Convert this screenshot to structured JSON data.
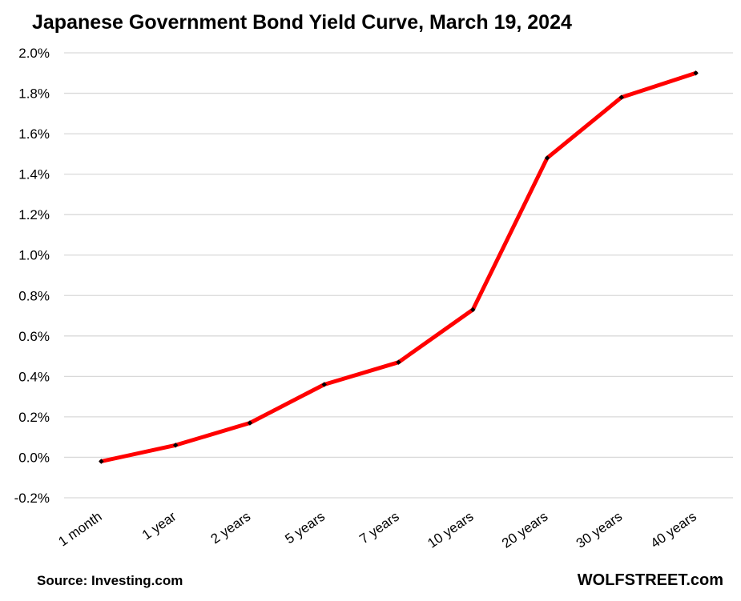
{
  "title": "Japanese Government Bond Yield Curve, March 19, 2024",
  "source": "Source: Investing.com",
  "brand": "WOLFSTREET.com",
  "colors": {
    "line": "#ff0000",
    "marker": "#000000",
    "grid": "#d9d9d9",
    "background": "#ffffff"
  },
  "chart_data": {
    "type": "line",
    "title": "Japanese Government Bond Yield Curve, March 19, 2024",
    "xlabel": "",
    "ylabel": "",
    "categories": [
      "1 month",
      "1 year",
      "2 years",
      "5 years",
      "7 years",
      "10 years",
      "20 years",
      "30 years",
      "40 years"
    ],
    "series": [
      {
        "name": "",
        "values": [
          -0.02,
          0.06,
          0.17,
          0.36,
          0.47,
          0.73,
          1.48,
          1.78,
          1.9
        ]
      }
    ],
    "ylim": [
      -0.2,
      2.0
    ],
    "yticks": [
      -0.2,
      0.0,
      0.2,
      0.4,
      0.6,
      0.8,
      1.0,
      1.2,
      1.4,
      1.6,
      1.8,
      2.0
    ],
    "ytick_labels": [
      "-0.2%",
      "0.0%",
      "0.2%",
      "0.4%",
      "0.6%",
      "0.8%",
      "1.0%",
      "1.2%",
      "1.4%",
      "1.6%",
      "1.8%",
      "2.0%"
    ],
    "grid": true,
    "legend": "none"
  }
}
